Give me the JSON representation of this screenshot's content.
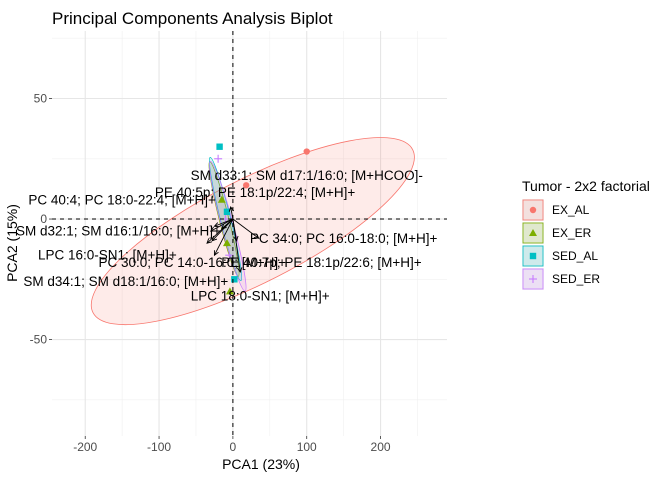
{
  "chart_data": {
    "type": "scatter",
    "title": "Principal Components Analysis Biplot",
    "xlabel": "PCA1 (23%)",
    "ylabel": "PCA2 (15%)",
    "xlim": [
      -245,
      290
    ],
    "ylim": [
      -90,
      78
    ],
    "x_ticks": [
      -200,
      -100,
      0,
      100,
      200
    ],
    "y_ticks": [
      -50,
      0,
      50
    ],
    "grid": true,
    "reference_lines": {
      "x": 0,
      "y": 0,
      "style": "dashed"
    },
    "legend": {
      "title": "Tumor - 2x2 factorial",
      "position": "right",
      "entries": [
        {
          "label": "EX_AL",
          "color": "#F8766D",
          "shape": "circle"
        },
        {
          "label": "EX_ER",
          "color": "#7CAE00",
          "shape": "triangle"
        },
        {
          "label": "SED_AL",
          "color": "#00BFC4",
          "shape": "square"
        },
        {
          "label": "SED_ER",
          "color": "#C77CFF",
          "shape": "plus"
        }
      ]
    },
    "series": [
      {
        "name": "EX_AL",
        "color": "#F8766D",
        "points": [
          {
            "x": 100,
            "y": 28
          },
          {
            "x": 18,
            "y": 14
          }
        ],
        "ellipse": {
          "cx": 27,
          "cy": -5,
          "rx": 243,
          "ry": 70,
          "angle": 27
        }
      },
      {
        "name": "EX_ER",
        "color": "#7CAE00",
        "points": [
          {
            "x": -15,
            "y": 8
          },
          {
            "x": -8,
            "y": -10
          },
          {
            "x": -4,
            "y": -30
          }
        ],
        "ellipse": {
          "cx": -12,
          "cy": 0,
          "rx": 80,
          "ry": 6.5,
          "angle": -76
        }
      },
      {
        "name": "SED_AL",
        "color": "#00BFC4",
        "points": [
          {
            "x": -18,
            "y": 30
          },
          {
            "x": -8,
            "y": 3
          },
          {
            "x": 2,
            "y": -25
          }
        ],
        "ellipse": {
          "cx": -10,
          "cy": 0,
          "rx": 86,
          "ry": 7,
          "angle": -76
        }
      },
      {
        "name": "SED_ER",
        "color": "#C77CFF",
        "points": [
          {
            "x": -20,
            "y": 25
          },
          {
            "x": -10,
            "y": 0
          },
          {
            "x": -5,
            "y": -15
          }
        ],
        "ellipse": {
          "cx": -7,
          "cy": -3,
          "rx": 91,
          "ry": 8,
          "angle": -75
        }
      }
    ],
    "loadings": [
      {
        "label": "SM d33:1; SM d17:1/16:0; [M+HCOO]-",
        "x": -3,
        "y": 5,
        "label_x": 100,
        "label_y": 18
      },
      {
        "label": "PC 40:4; PC 18:0-22:4; [M+H]+",
        "x": -25,
        "y": -3,
        "label_x": -150,
        "label_y": 8
      },
      {
        "label": "PE 40:5p; PE 18:1p/22:4; [M+H]+",
        "x": -15,
        "y": -4,
        "label_x": 30,
        "label_y": 11
      },
      {
        "label": "SM d32:1; SM d16:1/16:0; [M+H]+",
        "x": -30,
        "y": -5,
        "label_x": -155,
        "label_y": -5
      },
      {
        "label": "PC 34:0; PC 16:0-18:0; [M+H]+",
        "x": 35,
        "y": -8,
        "label_x": 150,
        "label_y": -8
      },
      {
        "label": "LPC 16:0-SN1; [M+H]+",
        "x": -28,
        "y": -9,
        "label_x": -170,
        "label_y": -15
      },
      {
        "label": "PC 30:0; PC 14:0-16:0; [M+H]+",
        "x": -35,
        "y": -10,
        "label_x": -55,
        "label_y": -18
      },
      {
        "label": "PE 40:7p; PE 18:1p/22:6; [M+H]+",
        "x": 5,
        "y": -9,
        "label_x": 120,
        "label_y": -18
      },
      {
        "label": "SM d34:1; SM d18:1/16:0; [M+H]+",
        "x": -25,
        "y": -15,
        "label_x": -145,
        "label_y": -26
      },
      {
        "label": "LPC 18:0-SN1; [M+H]+",
        "x": 10,
        "y": -22,
        "label_x": 37,
        "label_y": -32
      }
    ]
  }
}
